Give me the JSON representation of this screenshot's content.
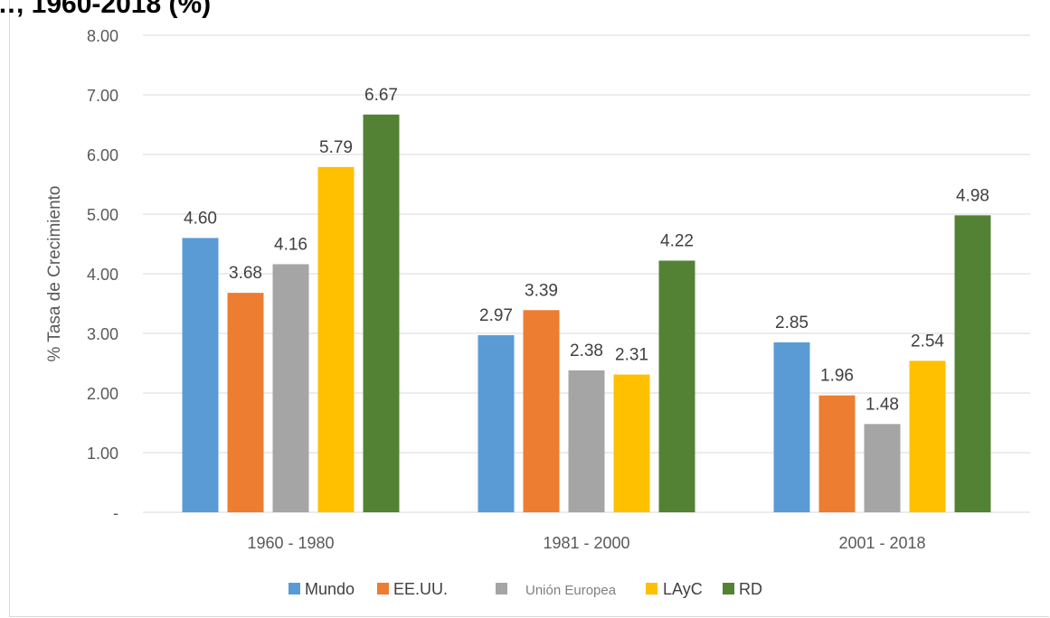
{
  "page": {
    "title": "…, 1960-2018 (%)"
  },
  "chart_data": {
    "type": "bar",
    "title": "",
    "xlabel": "",
    "ylabel": "% Tasa de Crecimiento",
    "ylim": [
      0,
      8
    ],
    "yticks": [
      "-",
      "1.00",
      "2.00",
      "3.00",
      "4.00",
      "5.00",
      "6.00",
      "7.00",
      "8.00"
    ],
    "categories": [
      "1960 - 1980",
      "1981 - 2000",
      "2001 - 2018"
    ],
    "grid": true,
    "legend_position": "bottom",
    "series": [
      {
        "name": "Mundo",
        "color": "#5b9bd5",
        "values": [
          4.6,
          2.97,
          2.85
        ],
        "labels": [
          "4.60",
          "2.97",
          "2.85"
        ]
      },
      {
        "name": "EE.UU.",
        "color": "#ed7d31",
        "values": [
          3.68,
          3.39,
          1.96
        ],
        "labels": [
          "3.68",
          "3.39",
          "1.96"
        ]
      },
      {
        "name": "Unión Europea",
        "color": "#a5a5a5",
        "values": [
          4.16,
          2.38,
          1.48
        ],
        "labels": [
          "4.16",
          "2.38",
          "1.48"
        ]
      },
      {
        "name": "LAyC",
        "color": "#ffc000",
        "values": [
          5.79,
          2.31,
          2.54
        ],
        "labels": [
          "5.79",
          "2.31",
          "2.54"
        ]
      },
      {
        "name": "RD",
        "color": "#548235",
        "values": [
          6.67,
          4.22,
          4.98
        ],
        "labels": [
          "6.67",
          "4.22",
          "4.98"
        ]
      }
    ]
  }
}
